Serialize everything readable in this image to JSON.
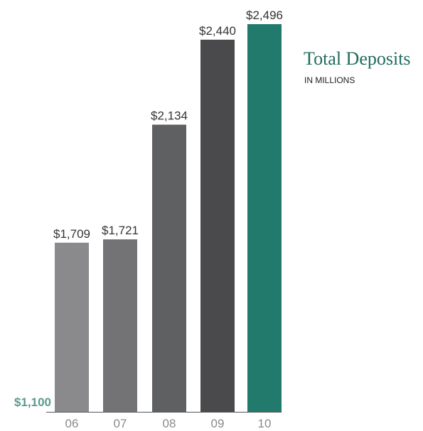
{
  "chart_data": {
    "type": "bar",
    "title": "Total Deposits",
    "subtitle": "IN MILLIONS",
    "categories": [
      "06",
      "07",
      "08",
      "09",
      "10"
    ],
    "values": [
      1709,
      1721,
      2134,
      2440,
      2496
    ],
    "value_labels": [
      "$1,709",
      "$1,721",
      "$2,134",
      "$2,440",
      "$2,496"
    ],
    "baseline_label": "$1,100",
    "ylim": [
      1100,
      2496
    ],
    "colors": [
      "#8a8a8c",
      "#737375",
      "#5f6062",
      "#4a4a4c",
      "#217a6c"
    ],
    "baseline_color": "#5a9a8f",
    "axis_label_color": "#8a8a8a",
    "value_label_color": "#333333"
  }
}
